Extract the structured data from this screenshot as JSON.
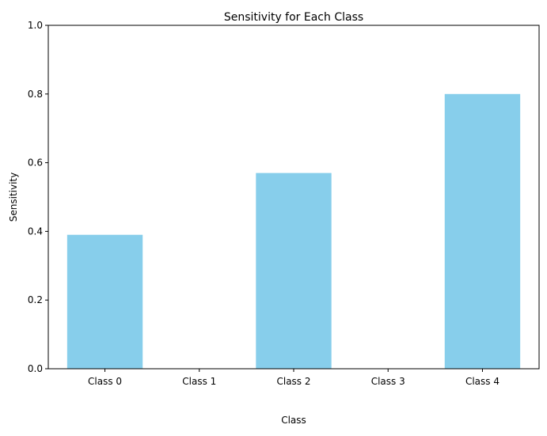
{
  "chart_data": {
    "type": "bar",
    "title": "Sensitivity for Each Class",
    "xlabel": "Class",
    "ylabel": "Sensitivity",
    "categories": [
      "Class 0",
      "Class 1",
      "Class 2",
      "Class 3",
      "Class 4"
    ],
    "values": [
      0.39,
      0.0,
      0.57,
      0.0,
      0.8
    ],
    "ylim": [
      0,
      1
    ],
    "yticks": [
      0.0,
      0.2,
      0.4,
      0.6,
      0.8,
      1.0
    ],
    "ytick_labels": [
      "0.0",
      "0.2",
      "0.4",
      "0.6",
      "0.8",
      "1.0"
    ],
    "grid": false,
    "bar_color": "#87ceeb"
  }
}
